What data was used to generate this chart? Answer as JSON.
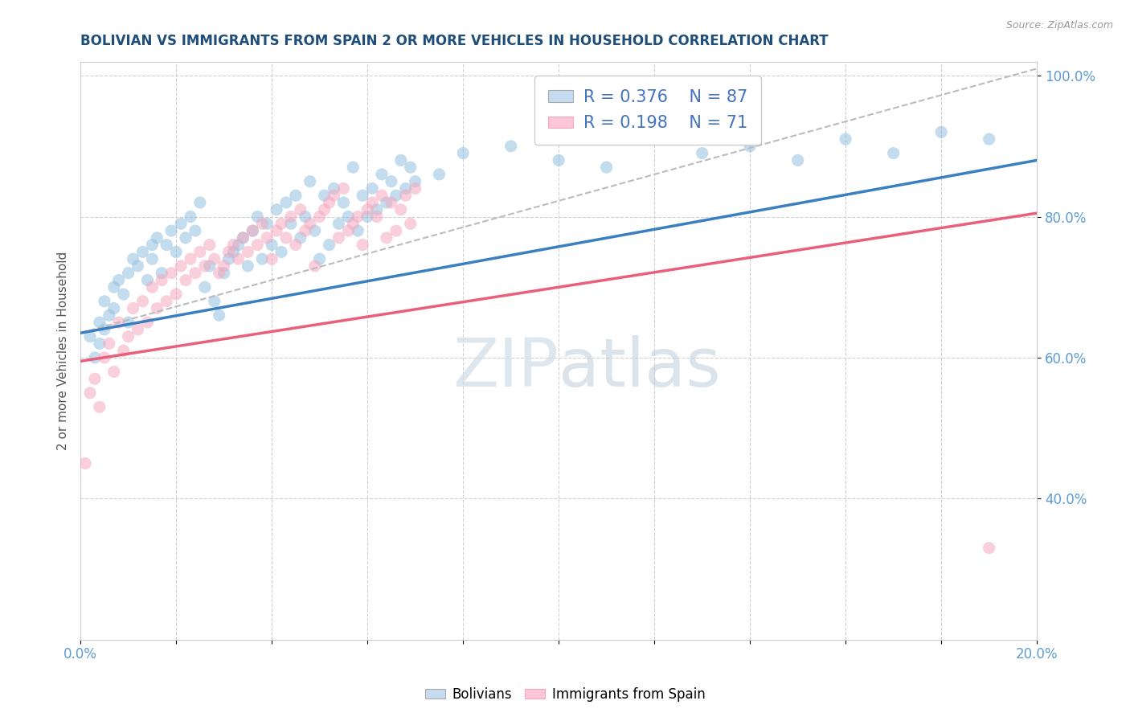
{
  "title": "BOLIVIAN VS IMMIGRANTS FROM SPAIN 2 OR MORE VEHICLES IN HOUSEHOLD CORRELATION CHART",
  "source": "Source: ZipAtlas.com",
  "ylabel": "2 or more Vehicles in Household",
  "legend_1_label": "Bolivians",
  "legend_2_label": "Immigrants from Spain",
  "r1": "0.376",
  "n1": "87",
  "r2": "0.198",
  "n2": "71",
  "blue_color": "#92c0e0",
  "pink_color": "#f4a8be",
  "blue_fill": "#c6dbef",
  "pink_fill": "#fcc5d8",
  "line_blue": "#3a7fbf",
  "line_pink": "#e8607a",
  "line_gray_dash": "#bbbbbb",
  "background": "#ffffff",
  "scatter_blue_x": [
    0.2,
    0.3,
    0.4,
    0.4,
    0.5,
    0.5,
    0.6,
    0.7,
    0.7,
    0.8,
    0.9,
    1.0,
    1.0,
    1.1,
    1.2,
    1.3,
    1.4,
    1.5,
    1.5,
    1.6,
    1.7,
    1.8,
    1.9,
    2.0,
    2.1,
    2.2,
    2.3,
    2.4,
    2.5,
    2.6,
    2.7,
    2.8,
    2.9,
    3.0,
    3.1,
    3.2,
    3.3,
    3.4,
    3.5,
    3.6,
    3.7,
    3.8,
    3.9,
    4.0,
    4.1,
    4.2,
    4.3,
    4.4,
    4.5,
    4.6,
    4.7,
    4.8,
    4.9,
    5.0,
    5.1,
    5.2,
    5.3,
    5.4,
    5.5,
    5.6,
    5.7,
    5.8,
    5.9,
    6.0,
    6.1,
    6.2,
    6.3,
    6.4,
    6.5,
    6.6,
    6.7,
    6.8,
    6.9,
    7.0,
    7.5,
    8.0,
    9.0,
    10.0,
    11.0,
    12.0,
    13.0,
    14.0,
    15.0,
    16.0,
    17.0,
    18.0,
    19.0
  ],
  "scatter_blue_y": [
    63,
    60,
    65,
    62,
    64,
    68,
    66,
    70,
    67,
    71,
    69,
    72,
    65,
    74,
    73,
    75,
    71,
    76,
    74,
    77,
    72,
    76,
    78,
    75,
    79,
    77,
    80,
    78,
    82,
    70,
    73,
    68,
    66,
    72,
    74,
    75,
    76,
    77,
    73,
    78,
    80,
    74,
    79,
    76,
    81,
    75,
    82,
    79,
    83,
    77,
    80,
    85,
    78,
    74,
    83,
    76,
    84,
    79,
    82,
    80,
    87,
    78,
    83,
    80,
    84,
    81,
    86,
    82,
    85,
    83,
    88,
    84,
    87,
    85,
    86,
    89,
    90,
    88,
    87,
    91,
    89,
    90,
    88,
    91,
    89,
    92,
    91
  ],
  "scatter_pink_x": [
    0.1,
    0.2,
    0.3,
    0.4,
    0.5,
    0.6,
    0.7,
    0.8,
    0.9,
    1.0,
    1.1,
    1.2,
    1.3,
    1.4,
    1.5,
    1.6,
    1.7,
    1.8,
    1.9,
    2.0,
    2.1,
    2.2,
    2.3,
    2.4,
    2.5,
    2.6,
    2.7,
    2.8,
    2.9,
    3.0,
    3.1,
    3.2,
    3.3,
    3.4,
    3.5,
    3.6,
    3.7,
    3.8,
    3.9,
    4.0,
    4.1,
    4.2,
    4.3,
    4.4,
    4.5,
    4.6,
    4.7,
    4.8,
    4.9,
    5.0,
    5.1,
    5.2,
    5.3,
    5.4,
    5.5,
    5.6,
    5.7,
    5.8,
    5.9,
    6.0,
    6.1,
    6.2,
    6.3,
    6.4,
    6.5,
    6.6,
    6.7,
    6.8,
    6.9,
    7.0,
    19.0
  ],
  "scatter_pink_y": [
    45,
    55,
    57,
    53,
    60,
    62,
    58,
    65,
    61,
    63,
    67,
    64,
    68,
    65,
    70,
    67,
    71,
    68,
    72,
    69,
    73,
    71,
    74,
    72,
    75,
    73,
    76,
    74,
    72,
    73,
    75,
    76,
    74,
    77,
    75,
    78,
    76,
    79,
    77,
    74,
    78,
    79,
    77,
    80,
    76,
    81,
    78,
    79,
    73,
    80,
    81,
    82,
    83,
    77,
    84,
    78,
    79,
    80,
    76,
    81,
    82,
    80,
    83,
    77,
    82,
    78,
    81,
    83,
    79,
    84,
    33
  ],
  "x_min": 0.0,
  "x_max": 20.0,
  "y_min": 20.0,
  "y_max": 102.0,
  "yticks": [
    40,
    60,
    80,
    100
  ],
  "ytick_labels": [
    "40.0%",
    "60.0%",
    "80.0%",
    "100.0%"
  ],
  "xticks": [
    0,
    2,
    4,
    6,
    8,
    10,
    12,
    14,
    16,
    18,
    20
  ],
  "xtick_labels_show": [
    0,
    20
  ],
  "trend_blue_x0": 0.0,
  "trend_blue_y0": 63.5,
  "trend_blue_x1": 20.0,
  "trend_blue_y1": 88.0,
  "trend_pink_x0": 0.0,
  "trend_pink_y0": 59.5,
  "trend_pink_x1": 20.0,
  "trend_pink_y1": 80.5,
  "trend_dash_x0": 0.0,
  "trend_dash_y0": 63.5,
  "trend_dash_x1": 20.0,
  "trend_dash_y1": 101.0
}
